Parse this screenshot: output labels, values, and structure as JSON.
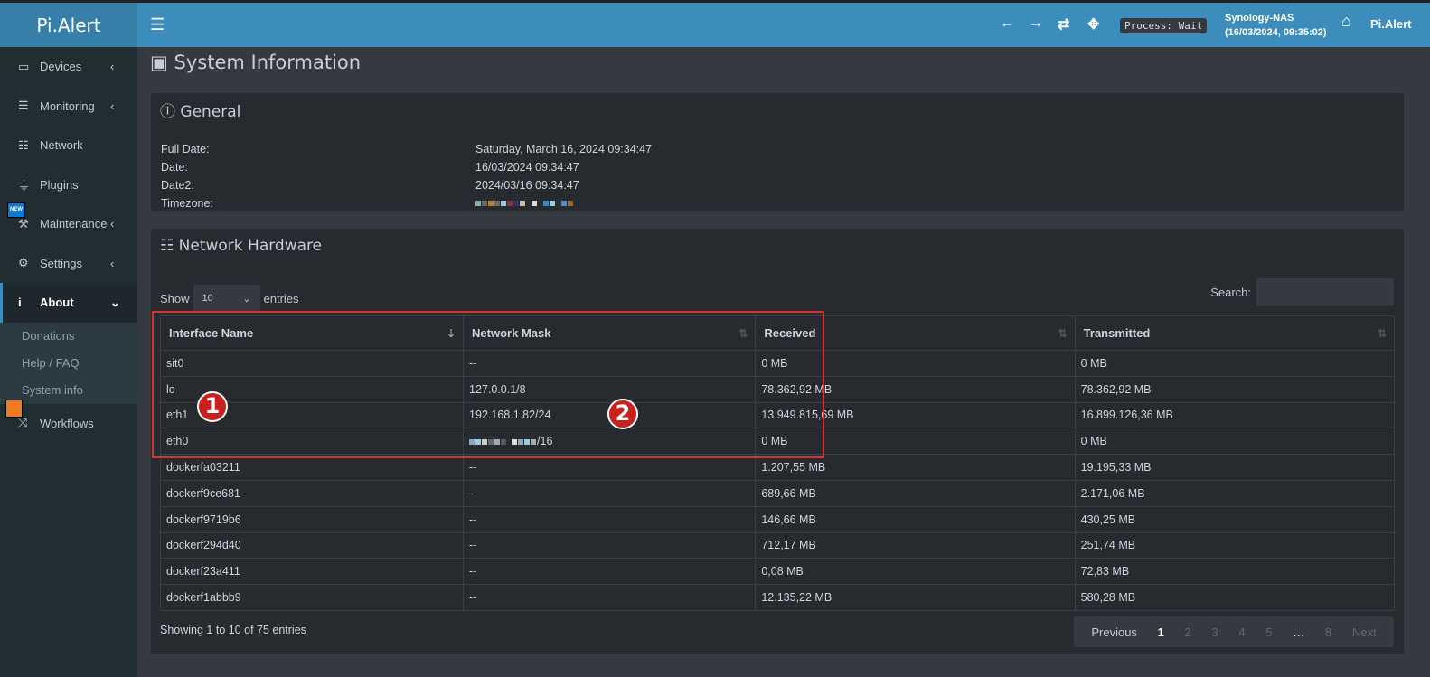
{
  "app": {
    "logo": "Pi.Alert"
  },
  "header": {
    "process": "Process: Wait",
    "host": "Synology-NAS",
    "host_time": "(16/03/2024, 09:35:02)",
    "brand": "Pi.Alert"
  },
  "sidebar": {
    "items": [
      {
        "label": "Devices",
        "icon": "laptop-icon"
      },
      {
        "label": "Monitoring",
        "icon": "chart-icon"
      },
      {
        "label": "Network",
        "icon": "network-icon"
      },
      {
        "label": "Plugins",
        "icon": "plug-icon"
      },
      {
        "label": "Maintenance",
        "icon": "wrench-icon",
        "badge": "NEW"
      },
      {
        "label": "Settings",
        "icon": "gear-icon"
      },
      {
        "label": "About",
        "icon": "info-icon"
      },
      {
        "label": "Workflows",
        "icon": "shuffle-icon"
      }
    ],
    "about_sub": [
      "Donations",
      "Help / FAQ",
      "System info"
    ]
  },
  "page": {
    "title": "System Information"
  },
  "general": {
    "title": "General",
    "rows": [
      {
        "label": "Full Date:",
        "value": "Saturday, March 16, 2024 09:34:47"
      },
      {
        "label": "Date:",
        "value": "16/03/2024 09:34:47"
      },
      {
        "label": "Date2:",
        "value": "2024/03/16 09:34:47"
      },
      {
        "label": "Timezone:",
        "value": ""
      }
    ]
  },
  "network": {
    "title": "Network Hardware",
    "show": "Show",
    "page_size": "10",
    "entries": "entries",
    "search_label": "Search:",
    "columns": [
      "Interface Name",
      "Network Mask",
      "Received",
      "Transmitted"
    ],
    "rows": [
      [
        "sit0",
        "--",
        "0 MB",
        "0 MB"
      ],
      [
        "lo",
        "127.0.0.1/8",
        "78.362,92 MB",
        "78.362,92 MB"
      ],
      [
        "eth1",
        "192.168.1.82/24",
        "13.949.815,69 MB",
        "16.899.126,36 MB"
      ],
      [
        "eth0",
        "/16",
        "0 MB",
        "0 MB"
      ],
      [
        "dockerfa03211",
        "--",
        "1.207,55 MB",
        "19.195,33 MB"
      ],
      [
        "dockerf9ce681",
        "--",
        "689,66 MB",
        "2.171,06 MB"
      ],
      [
        "dockerf9719b6",
        "--",
        "146,66 MB",
        "430,25 MB"
      ],
      [
        "dockerf294d40",
        "--",
        "712,17 MB",
        "251,74 MB"
      ],
      [
        "dockerf23a411",
        "--",
        "0,08 MB",
        "72,83 MB"
      ],
      [
        "dockerf1abbb9",
        "--",
        "12.135,22 MB",
        "580,28 MB"
      ]
    ],
    "info": "Showing 1 to 10 of 75 entries",
    "pager": [
      "Previous",
      "1",
      "2",
      "3",
      "4",
      "5",
      "…",
      "8",
      "Next"
    ]
  },
  "annotations": [
    "1",
    "2"
  ],
  "colors": {
    "header": "#3c8dbc",
    "sidebar": "#222d32",
    "highlight": "#d9312b"
  }
}
